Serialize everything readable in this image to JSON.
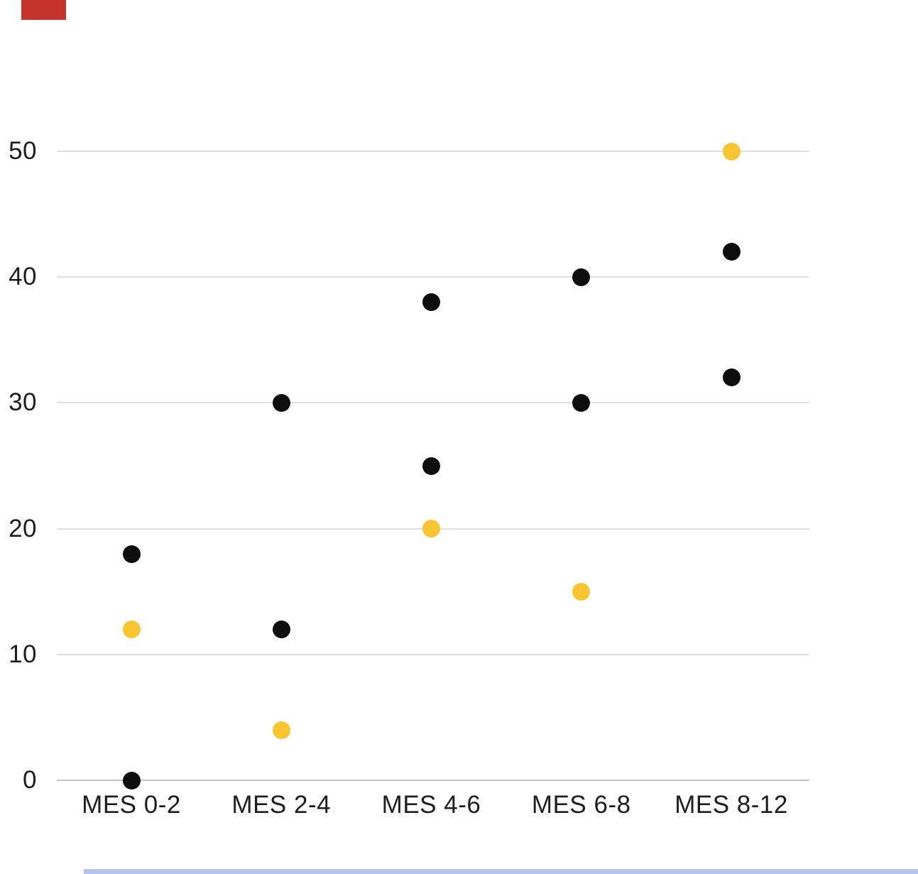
{
  "page": {
    "background": "#ffffff",
    "red_badge_color": "#c5332b",
    "bottom_strip_color": "#b4c2ec"
  },
  "chart_data": {
    "type": "scatter",
    "title": "",
    "categories": [
      "MES 0-2",
      "MES 2-4",
      "MES 4-6",
      "MES 6-8",
      "MES 8-12"
    ],
    "series": [
      {
        "name": "black-upper",
        "color": "#0e0e0e",
        "values": [
          18,
          30,
          38,
          40,
          42
        ]
      },
      {
        "name": "black-lower",
        "color": "#0e0e0e",
        "values": [
          0,
          12,
          25,
          30,
          32
        ]
      },
      {
        "name": "yellow",
        "color": "#f8c430",
        "values": [
          12,
          4,
          20,
          15,
          50
        ]
      }
    ],
    "yticks": [
      0,
      10,
      20,
      30,
      40,
      50
    ],
    "ylim": [
      0,
      50
    ],
    "grid": true,
    "legend": "none",
    "grid_color": "#e0e0e0",
    "axis_color": "#c3c3c3",
    "label_color": "#1e1e1e"
  }
}
